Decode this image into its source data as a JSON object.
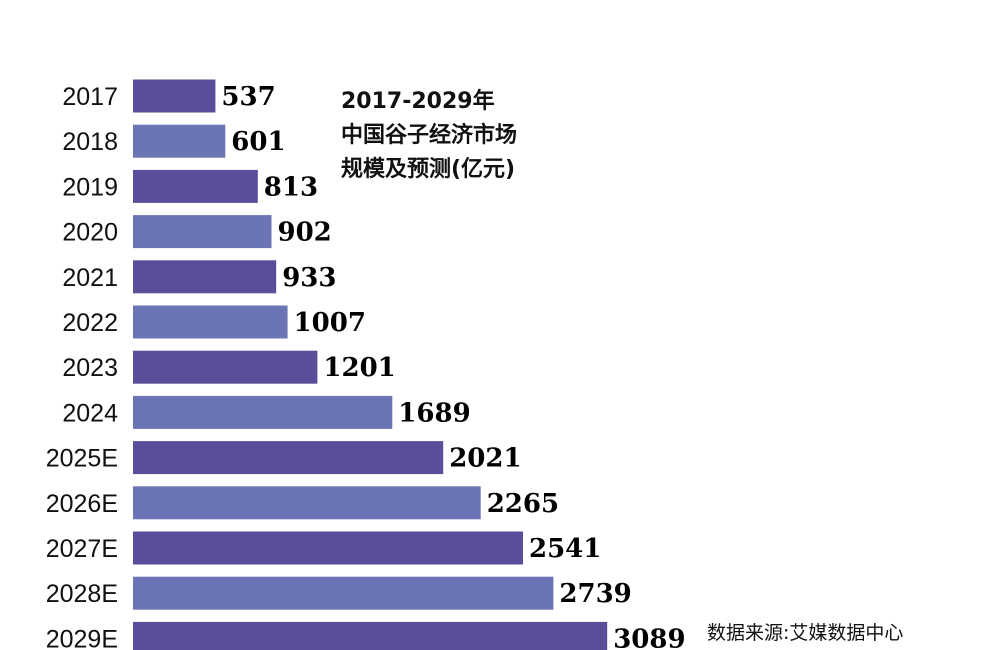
{
  "chart_data": {
    "type": "bar",
    "orientation": "horizontal",
    "title_lines": [
      "2017-2029年",
      "中国谷子经济市场",
      "规模及预测(亿元)"
    ],
    "categories": [
      "2017",
      "2018",
      "2019",
      "2020",
      "2021",
      "2022",
      "2023",
      "2024",
      "2025E",
      "2026E",
      "2027E",
      "2028E",
      "2029E"
    ],
    "values": [
      537,
      601,
      813,
      902,
      933,
      1007,
      1201,
      1689,
      2021,
      2265,
      2541,
      2739,
      3089
    ],
    "xlim": [
      0,
      3600
    ],
    "grid": false,
    "colors": [
      "#5a4e9b",
      "#6b75b5"
    ],
    "source": "数据来源:艾媒数据中心"
  }
}
